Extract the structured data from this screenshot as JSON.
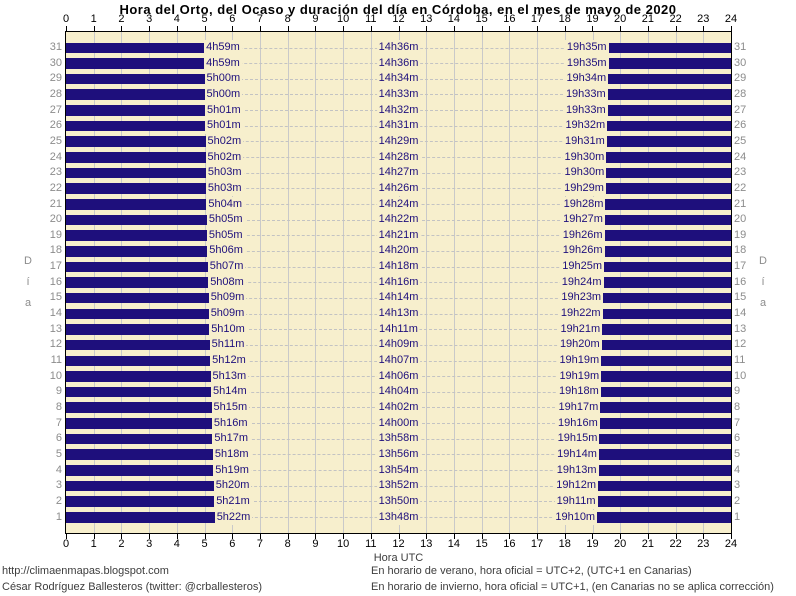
{
  "title": "Hora del Orto, del Ocaso y duración del día en Córdoba, en el mes de mayo de 2020",
  "axis": {
    "x_label_bottom": "Hora UTC",
    "y_label_left": "Día",
    "y_label_right": "Día",
    "hours": [
      0,
      1,
      2,
      3,
      4,
      5,
      6,
      7,
      8,
      9,
      10,
      11,
      12,
      13,
      14,
      15,
      16,
      17,
      18,
      19,
      20,
      21,
      22,
      23,
      24
    ]
  },
  "footer": {
    "left_line1": "http://climaenmapas.blogspot.com",
    "left_line2": "César Rodríguez Ballesteros (twitter: @crballesteros)",
    "right_line1": "En horario de verano, hora oficial = UTC+2, (UTC+1 en Canarias)",
    "right_line2": "En horario de invierno, hora oficial = UTC+1, (en Canarias no se aplica corrección)"
  },
  "colors": {
    "night_bar": "#1e0f7c",
    "day_background": "#f7efcd",
    "gridline": "#c9c9c9",
    "dashed_line": "#c3c3c3",
    "label_text": "#1e0f7c",
    "day_number_text": "#8c8c8c",
    "axis_text": "#000000"
  },
  "chart_data": {
    "type": "bar",
    "subtype": "diurnal-gantt",
    "title": "Hora del Orto, del Ocaso y duración del día en Córdoba, en el mes de mayo de 2020",
    "xlabel": "Hora UTC",
    "ylabel": "Día",
    "xlim": [
      0,
      24
    ],
    "grid": true,
    "days": [
      {
        "day": 31,
        "sunrise": "4h59m",
        "daylength": "14h36m",
        "sunset": "19h35m"
      },
      {
        "day": 30,
        "sunrise": "4h59m",
        "daylength": "14h36m",
        "sunset": "19h35m"
      },
      {
        "day": 29,
        "sunrise": "5h00m",
        "daylength": "14h34m",
        "sunset": "19h34m"
      },
      {
        "day": 28,
        "sunrise": "5h00m",
        "daylength": "14h33m",
        "sunset": "19h33m"
      },
      {
        "day": 27,
        "sunrise": "5h01m",
        "daylength": "14h32m",
        "sunset": "19h33m"
      },
      {
        "day": 26,
        "sunrise": "5h01m",
        "daylength": "14h31m",
        "sunset": "19h32m"
      },
      {
        "day": 25,
        "sunrise": "5h02m",
        "daylength": "14h29m",
        "sunset": "19h31m"
      },
      {
        "day": 24,
        "sunrise": "5h02m",
        "daylength": "14h28m",
        "sunset": "19h30m"
      },
      {
        "day": 23,
        "sunrise": "5h03m",
        "daylength": "14h27m",
        "sunset": "19h30m"
      },
      {
        "day": 22,
        "sunrise": "5h03m",
        "daylength": "14h26m",
        "sunset": "19h29m"
      },
      {
        "day": 21,
        "sunrise": "5h04m",
        "daylength": "14h24m",
        "sunset": "19h28m"
      },
      {
        "day": 20,
        "sunrise": "5h05m",
        "daylength": "14h22m",
        "sunset": "19h27m"
      },
      {
        "day": 19,
        "sunrise": "5h05m",
        "daylength": "14h21m",
        "sunset": "19h26m"
      },
      {
        "day": 18,
        "sunrise": "5h06m",
        "daylength": "14h20m",
        "sunset": "19h26m"
      },
      {
        "day": 17,
        "sunrise": "5h07m",
        "daylength": "14h18m",
        "sunset": "19h25m"
      },
      {
        "day": 16,
        "sunrise": "5h08m",
        "daylength": "14h16m",
        "sunset": "19h24m"
      },
      {
        "day": 15,
        "sunrise": "5h09m",
        "daylength": "14h14m",
        "sunset": "19h23m"
      },
      {
        "day": 14,
        "sunrise": "5h09m",
        "daylength": "14h13m",
        "sunset": "19h22m"
      },
      {
        "day": 13,
        "sunrise": "5h10m",
        "daylength": "14h11m",
        "sunset": "19h21m"
      },
      {
        "day": 12,
        "sunrise": "5h11m",
        "daylength": "14h09m",
        "sunset": "19h20m"
      },
      {
        "day": 11,
        "sunrise": "5h12m",
        "daylength": "14h07m",
        "sunset": "19h19m"
      },
      {
        "day": 10,
        "sunrise": "5h13m",
        "daylength": "14h06m",
        "sunset": "19h19m"
      },
      {
        "day": 9,
        "sunrise": "5h14m",
        "daylength": "14h04m",
        "sunset": "19h18m"
      },
      {
        "day": 8,
        "sunrise": "5h15m",
        "daylength": "14h02m",
        "sunset": "19h17m"
      },
      {
        "day": 7,
        "sunrise": "5h16m",
        "daylength": "14h00m",
        "sunset": "19h16m"
      },
      {
        "day": 6,
        "sunrise": "5h17m",
        "daylength": "13h58m",
        "sunset": "19h15m"
      },
      {
        "day": 5,
        "sunrise": "5h18m",
        "daylength": "13h56m",
        "sunset": "19h14m"
      },
      {
        "day": 4,
        "sunrise": "5h19m",
        "daylength": "13h54m",
        "sunset": "19h13m"
      },
      {
        "day": 3,
        "sunrise": "5h20m",
        "daylength": "13h52m",
        "sunset": "19h12m"
      },
      {
        "day": 2,
        "sunrise": "5h21m",
        "daylength": "13h50m",
        "sunset": "19h11m"
      },
      {
        "day": 1,
        "sunrise": "5h22m",
        "daylength": "13h48m",
        "sunset": "19h10m"
      }
    ]
  }
}
